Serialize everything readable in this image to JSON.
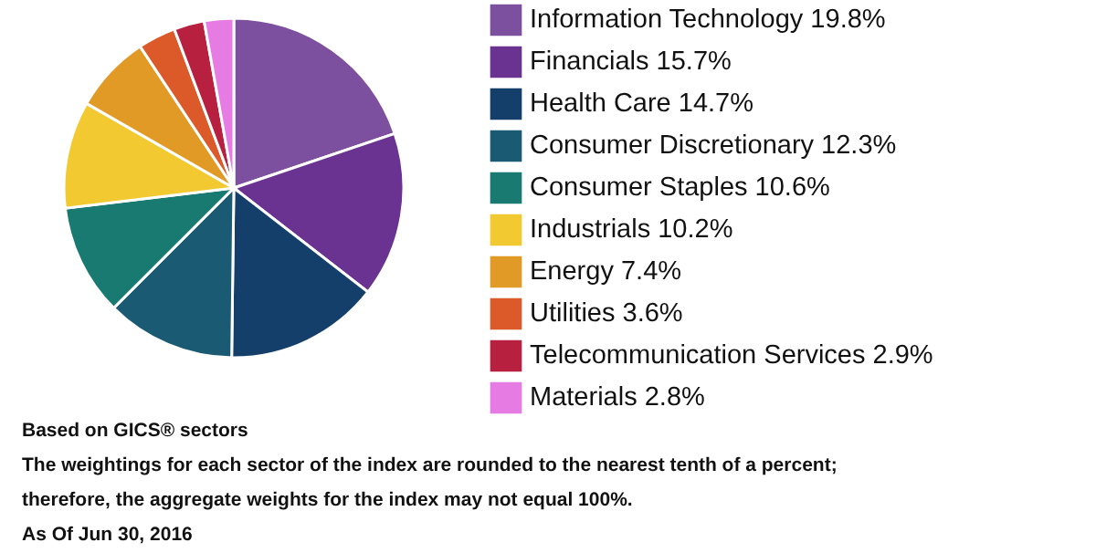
{
  "chart_data": {
    "type": "pie",
    "categories": [
      "Information Technology",
      "Financials",
      "Health Care",
      "Consumer Discretionary",
      "Consumer Staples",
      "Industrials",
      "Energy",
      "Utilities",
      "Telecommunication Services",
      "Materials"
    ],
    "values": [
      19.8,
      15.7,
      14.7,
      12.3,
      10.6,
      10.2,
      7.4,
      3.6,
      2.9,
      2.8
    ],
    "value_labels": [
      "19.8%",
      "15.7%",
      "14.7%",
      "12.3%",
      "10.6%",
      "10.2%",
      "7.4%",
      "3.6%",
      "2.9%",
      "2.8%"
    ],
    "colors": [
      "#7d4f9f",
      "#6a3391",
      "#143f6b",
      "#1b5a73",
      "#187a70",
      "#f3c932",
      "#e09a25",
      "#dc5a2a",
      "#b8203f",
      "#e67ce3"
    ],
    "legend": "right",
    "annotations": [
      "Based on GICS® sectors",
      "The weightings for each sector of the index are rounded to the nearest tenth of a percent;",
      "therefore, the aggregate weights for the index may not equal 100%.",
      "As Of Jun 30, 2016"
    ]
  }
}
